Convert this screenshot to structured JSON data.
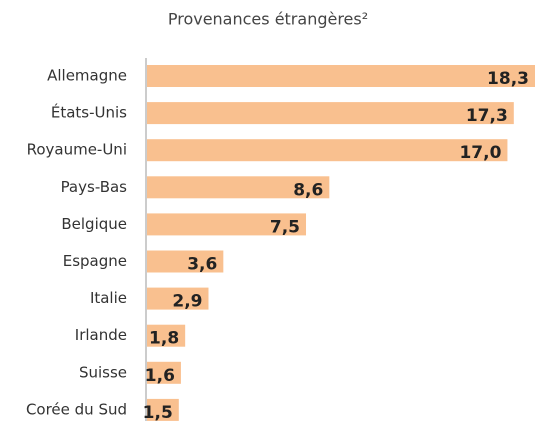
{
  "chart_data": {
    "type": "bar",
    "orientation": "horizontal",
    "title": "Provenances étrangères²",
    "categories": [
      "Allemagne",
      "États-Unis",
      "Royaume-Uni",
      "Pays-Bas",
      "Belgique",
      "Espagne",
      "Italie",
      "Irlande",
      "Suisse",
      "Corée du Sud"
    ],
    "values": [
      18.3,
      17.3,
      17.0,
      8.6,
      7.5,
      3.6,
      2.9,
      1.8,
      1.6,
      1.5
    ],
    "value_labels": [
      "18,3",
      "17,3",
      "17,0",
      "8,6",
      "7,5",
      "3,6",
      "2,9",
      "1,8",
      "1,6",
      "1,5"
    ],
    "color": "#f9c08f"
  }
}
